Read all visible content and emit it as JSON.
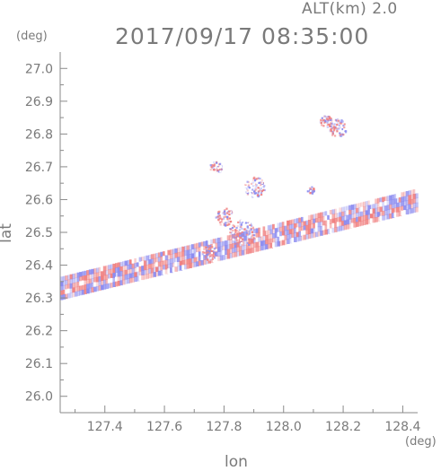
{
  "header": {
    "altitude_label": "ALT(km)  2.0",
    "datetime": "2017/09/17 08:35:00"
  },
  "chart_data": {
    "type": "heatmap",
    "title": "2017/09/17 08:35:00",
    "xlabel": "lon",
    "ylabel": "lat",
    "x_unit": "(deg)",
    "y_unit": "(deg)",
    "xlim": [
      127.25,
      128.45
    ],
    "ylim": [
      25.95,
      27.05
    ],
    "x_ticks": [
      "127.4",
      "127.6",
      "127.8",
      "128.0",
      "128.2",
      "128.4"
    ],
    "x_tick_values": [
      127.4,
      127.6,
      127.8,
      128.0,
      128.2,
      128.4
    ],
    "y_ticks": [
      "26.0",
      "26.1",
      "26.2",
      "26.3",
      "26.4",
      "26.5",
      "26.6",
      "26.7",
      "26.8",
      "26.9",
      "27.0"
    ],
    "y_tick_values": [
      26.0,
      26.1,
      26.2,
      26.3,
      26.4,
      26.5,
      26.6,
      26.7,
      26.8,
      26.9,
      27.0
    ],
    "colors": {
      "positive": "#f08080",
      "negative": "#8c8cf0",
      "axis": "#8a8a8a"
    },
    "data_band": {
      "start": [
        127.25,
        26.33
      ],
      "end": [
        128.45,
        26.6
      ],
      "half_width_lat": 0.035
    },
    "echo_clusters": [
      {
        "lon": 127.86,
        "lat": 26.5,
        "r": 0.045
      },
      {
        "lon": 127.8,
        "lat": 26.55,
        "r": 0.03
      },
      {
        "lon": 127.9,
        "lat": 26.64,
        "r": 0.035
      },
      {
        "lon": 127.77,
        "lat": 26.7,
        "r": 0.02
      },
      {
        "lon": 128.18,
        "lat": 26.82,
        "r": 0.03
      },
      {
        "lon": 128.14,
        "lat": 26.84,
        "r": 0.02
      },
      {
        "lon": 127.75,
        "lat": 26.44,
        "r": 0.025
      },
      {
        "lon": 128.09,
        "lat": 26.63,
        "r": 0.012
      }
    ]
  }
}
